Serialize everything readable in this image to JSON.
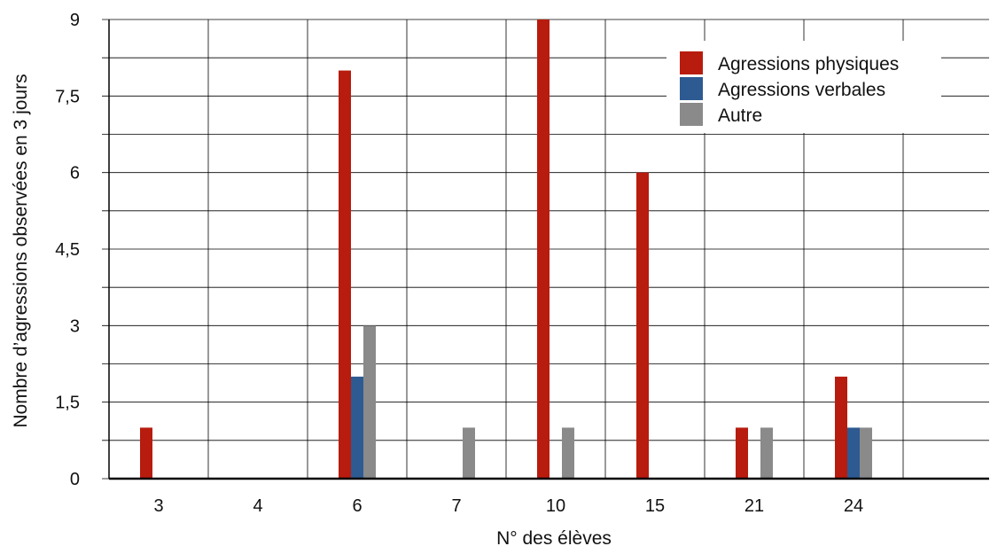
{
  "chart_data": {
    "type": "bar",
    "title": "",
    "xlabel": "N° des élèves",
    "ylabel": "Nombre d’agressions observées en 3 jours",
    "categories": [
      "3",
      "4",
      "6",
      "7",
      "10",
      "15",
      "21",
      "24"
    ],
    "series": [
      {
        "name": "Agressions physiques",
        "color": "#b81c0e",
        "values": [
          1,
          0,
          8,
          0,
          9,
          6,
          1,
          2
        ]
      },
      {
        "name": "Agressions verbales",
        "color": "#2e5a92",
        "values": [
          0,
          0,
          2,
          0,
          0,
          0,
          0,
          1
        ]
      },
      {
        "name": "Autre",
        "color": "#8a8a8a",
        "values": [
          0,
          0,
          3,
          1,
          1,
          0,
          1,
          1
        ]
      }
    ],
    "ylim": [
      0,
      9
    ],
    "yticks": [
      0,
      1.5,
      3,
      4.5,
      6,
      7.5,
      9
    ],
    "ytick_labels": [
      "0",
      "1,5",
      "3",
      "4,5",
      "6",
      "7,5",
      "9"
    ],
    "grid": true,
    "legend_position": "top-right"
  }
}
